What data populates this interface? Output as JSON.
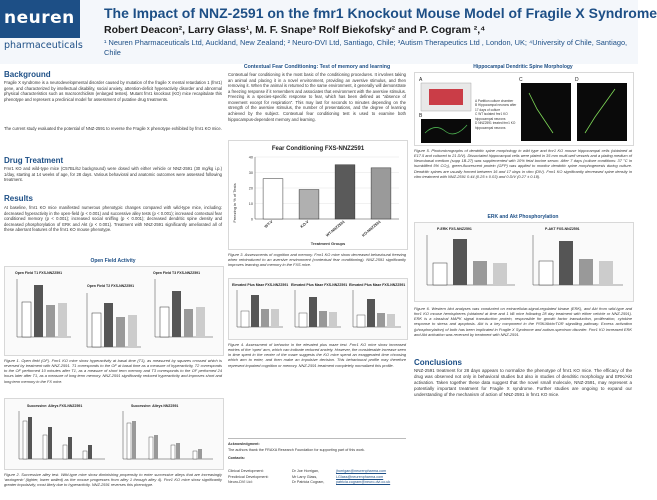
{
  "header": {
    "logo_text": "neuren",
    "logo_sub": "pharmaceuticals",
    "title": "The Impact of NNZ-2591 on the fmr1 Knockout Mouse Model of Fragile X Syndrome",
    "authors": "Robert Deacon², Larry Glass¹, M. F. Snape³ Rolf Biekofsky² and P. Cogram ²,⁴",
    "affiliations": "¹ Neuren Pharmaceuticals Ltd, Auckland, New Zealand; ² Neuro-DVI Ltd, Santiago, Chile; ³Autism Therapeutics Ltd , London, UK; ⁴University of Chile, Santiago, Chile"
  },
  "background": {
    "title": "Background",
    "text1": "Fragile X syndrome is a neurodevelopmental disorder caused by mutation of the fragile X mental retardation 1 (fmr1) gene, and characterized by intellectual disability, social anxiety, attention-deficit hyperactivity disorder and abnormal physical characteristics such as macroorchidism (enlarged testes). Mutant fmr1 knockout (KO) mice recapitulate this phenotype and represent a preclinical model for assessment of putative drug treatments.",
    "text2": "The current study evaluated the potential of NNZ-2591 to reverse the Fragile X phenotype exhibited by fmr1 KO mice."
  },
  "drug": {
    "title": "Drug Treatment",
    "text": "Fmr1 KO and wild-type mice (C57BL/6J background) were dosed with either vehicle or NNZ-2591 (30 mg/kg i.p.) 1/day, starting at 14 weeks of age, for 28 days. Various behavioral and anatomic outcomes were assessed following treatment."
  },
  "results": {
    "title": "Results",
    "text": "At baseline, fmr1 KO mice manifested numerous phenotypic changes compared with wild-type mice, including: decreased hyperactivity in the open-field (p < 0.001) and successive alley tests (p < 0.001); increased contextual fear conditioned memory (p < 0.001); increased social sniffing (p < 0.001); decreased dendritic spine density and decreased phosphorylation of ERK and Akt (p < 0.001). Treatment with NNZ-2591 significantly ameliorated all of these aberrant features of the fmr1 KO mouse phenotype."
  },
  "open_field": {
    "title": "Open Field Activity",
    "mini": [
      "Open Field T1 FXS-NNZ2591",
      "Open Field T2 FXS-NNZ2591",
      "Open Field T3 FXS-NNZ2591"
    ],
    "caption": "Figure 1. Open field (OF). Fmr1 KO mice show hyperactivity at basal time (T1), as measured by squares crossed which is reversed by treatment with NNZ-2591. T1 corresponds to the OF at basal time as a measure of hyperactivity, T2 corresponds to the OF performed 10 minutes after T1, as a measure of short term memory and T3 corresponds to the OF performed 24 hours later after T1, as a measure of long term memory. NNZ-2591 significantly reduced hyperactivity and improves short and long term memory in the FX mice."
  },
  "successive": {
    "mini": [
      "Successive: Alleys FXS-NNZ2591",
      "Successive: Alleys NNZ2591"
    ],
    "caption": "Figure 2. Successive alley test. Wild-type mice show diminishing propensity to enter successive alleys that are increasingly ‘anxiogenic’ (lighter, lower walled) as the mouse progresses from alley 1 through alley 4). Fmr1 KO mice show significantly greater impulsivity, most likely due to hyperactivity. NNZ-2591 reverses this phenotype."
  },
  "fear": {
    "section_title": "Contextual Fear Conditioning: Test of memory and learning",
    "text": "Contextual fear conditioning is the most basic of the conditioning procedures. It involves taking an animal and placing it in a novel environment, providing an aversive stimulus, and then removing it. When the animal is returned to the same environment, it generally will demonstrate a freezing response if it remembers and associates that environment with the aversive stimulus. Freezing is a species-specific response to fear, which has been defined as \"absence of movement except for respiration\". This may last for seconds to minutes depending on the strength of the aversive stimulus, the number of presentations, and the degree of learning achieved by the subject. Contextual fear conditioning test is used to examine both hippocampus-dependent memory and learning.",
    "caption": "Figure 3. Assessments of cognition and memory. Fmr1 KO mice show decreased behavioural freezing when reintroduced to an aversive environment (contextual fear conditioning). NNZ-2591 significantly improves learning and memory in the FXS mice."
  },
  "elevated": {
    "mini": [
      "Elevated Plus Maze FXS-NNZ2591",
      "Elevated Plus Maze FXS-NNZ2591",
      "Elevated Plus Maze FXS-NNZ2591"
    ],
    "caption": "Figure 4. Assessment of behavior in the elevated plus maze test. Fmr1 KO mice show increased entries of the ‘open’ arm, which can indicate reduced anxiety. However, the considerable increase seen in time spent in the center of the maze suggests the KO mice spend an exaggerated time choosing which arm to enter, and then make an impulsive decision. This behavioural profile may therefore represent impaired cognition or memory. NNZ-2591 treatment completely normalized this profile."
  },
  "ack": {
    "title": "Acknowledgment:",
    "text": "The authors thank the FRAXA Research Foundation for supporting part of this work.",
    "contacts_title": "Contacts:",
    "rows": [
      {
        "role": "Clinical Development:",
        "name": "Dr Joe Horrigan,",
        "email": "jhorrigan@neurenpharma.com"
      },
      {
        "role": "Preclinical Development:",
        "name": "Mr Larry Glass,",
        "email": "LGlass@neurenpharma.com"
      },
      {
        "role": "Neuro-DVI Ltd:",
        "name": "Dr Patricia Cogram,",
        "email": "patricia.cogram@neuro-dvi.co.uk"
      }
    ]
  },
  "spine": {
    "title": "Hippocampal Dendritic Spine Morphology",
    "legend": [
      "A   Partition culture chamber",
      "B   Hippocampal neurons after 17 days of culture",
      "C   WT isolated fmr1 KO hippocampal neurons",
      "D   NNZ2591 treated fmr1 KO hippocampal neurons"
    ],
    "caption": "Figure 5. Photomicrographs of dendritic spine morphology in wild type and fmr1 KO mouse hippocampal cells (obtained at E17.5 and cultured to 21 DIV). Dissociated hippocampal cells were plated in 35 mm multi-well vessels and a plating medium of Neurobasal medium (supp 1B-27) was supplemented with 10% fetal bovine serum. After 7 days (culture conditions: 37 °C in humidified 5% CO₂), green-fluorescent protein (GFP) was applied to monitor dendritic spine morphogenesis during culture. Dendritic spines are usually formed between 16 and 17 days in vitro (DIV). Fmr1 KO significantly decreased spine density in vitro treatment with NNZ-2591 0.44 (0.25 ± 0.03) and 0 DIV (0.27 ± 0.18)."
  },
  "erk": {
    "title": "ERK and Akt Phosphorylation",
    "mini": [
      "P-ERK FXS-NNZ2591",
      "P-AKT FXS-NNZ2591"
    ],
    "caption": "Figure 6. Western blot analyses was conducted on extracellular-signal-regulated kinase (ERK), and Akt from wild-type and fmr1 KO mouse hemispheres (obtained at time and 1 kB mice following 28 day treatment with either vehicle or NNZ-2591). ERK is a classical MAPK signal transduction protein, responsible for growth factor transduction, proliferation, cytokine response to stress and apoptosis. Akt is a key component in the PI3K/Akt/mTOR signalling pathway. Excess activation (phosphorylation) of both has been implicated in Fragile X Syndrome and autism-spectrum disorder. Fmr1 KO increased ERK and Akt activation was reversed by treatment with NNZ-2591."
  },
  "conclusions": {
    "title": "Conclusions",
    "text": "NNZ-2591 treatment for 28 days appears to normalize the phenotype of fmr1 KO mice. The efficacy of the drug was observed not only in behavioral studies but also in studies of dendritic morphology and ERK/Akt activation. Taken together these data suggest that the novel small molecule, NNZ-2591, may represent a potentially important treatment for Fragile X syndrome. Further studies are ongoing to expand our understanding of the mechanism of action of NNZ-2591 in fmr1 KO mice."
  },
  "chart_data": {
    "type": "bar",
    "title": "Fear Conditioning FXS-NNZ2591",
    "categories": [
      "WT-V",
      "KO-V",
      "WT-NNZ2591",
      "KO-NNZ2591"
    ],
    "values": [
      26,
      19,
      35,
      33
    ],
    "colors": [
      "#ffffff",
      "#b0b0b0",
      "#5a5a5a",
      "#9a9a9a"
    ],
    "xlabel": "Treatment Groups",
    "ylabel": "Freezing in % of Tests",
    "ylim": [
      0,
      40
    ],
    "yticks": [
      0,
      10,
      20,
      30,
      40
    ]
  }
}
